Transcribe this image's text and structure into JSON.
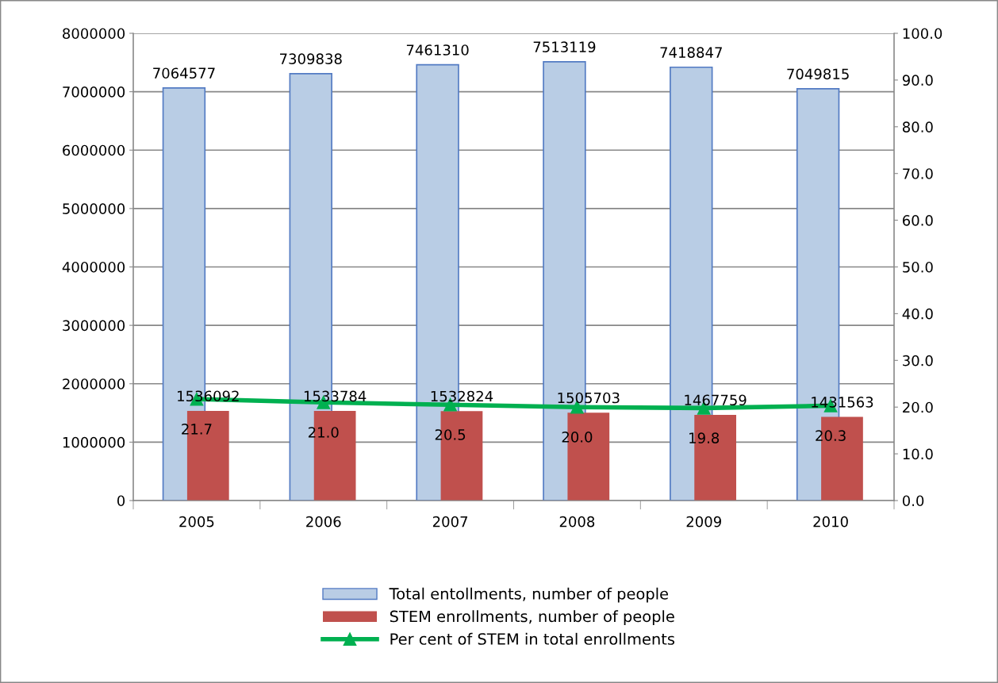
{
  "chart_data": {
    "type": "bar",
    "categories": [
      "2005",
      "2006",
      "2007",
      "2008",
      "2009",
      "2010"
    ],
    "series": [
      {
        "name": "Total entollments, number of people",
        "color": "#b9cde5",
        "values": [
          7064577,
          7309838,
          7461310,
          7513119,
          7418847,
          7049815
        ]
      },
      {
        "name": "STEM enrollments, number of people",
        "color": "#c0504d",
        "values": [
          1536092,
          1533784,
          1532824,
          1505703,
          1467759,
          1431563
        ]
      },
      {
        "name": "Per cent of STEM in total enrollments",
        "type": "line",
        "axis": "y2",
        "color": "#00b050",
        "marker": "triangle",
        "values": [
          21.7,
          21.0,
          20.5,
          20.0,
          19.8,
          20.3
        ],
        "value_labels": [
          "21.7",
          "21.0",
          "20.5",
          "20.0",
          "19.8",
          "20.3"
        ]
      }
    ],
    "data_labels": true,
    "ylim": [
      0,
      8000000
    ],
    "yticks": [
      0,
      1000000,
      2000000,
      3000000,
      4000000,
      5000000,
      6000000,
      7000000,
      8000000
    ],
    "y2lim": [
      0,
      100
    ],
    "y2ticks": [
      {
        "value": 0,
        "label": "0.0"
      },
      {
        "value": 10,
        "label": "10.0"
      },
      {
        "value": 20,
        "label": "20.0"
      },
      {
        "value": 30,
        "label": "30.0"
      },
      {
        "value": 40,
        "label": "40.0"
      },
      {
        "value": 50,
        "label": "50.0"
      },
      {
        "value": 60,
        "label": "60.0"
      },
      {
        "value": 70,
        "label": "70.0"
      },
      {
        "value": 80,
        "label": "80.0"
      },
      {
        "value": 90,
        "label": "90.0"
      },
      {
        "value": 100,
        "label": "100.0"
      }
    ],
    "grid": "y",
    "legend": "bottom"
  }
}
